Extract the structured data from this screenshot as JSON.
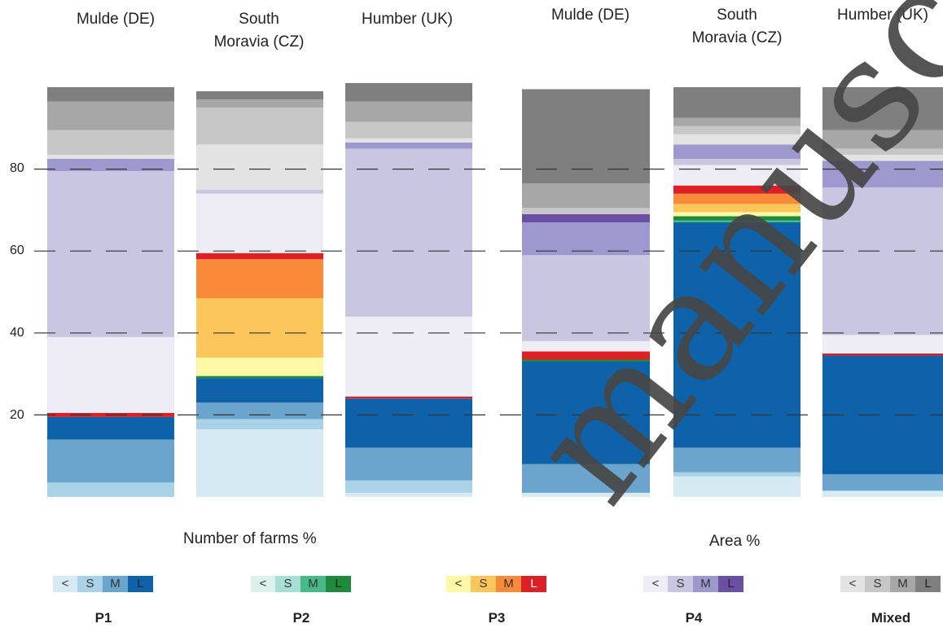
{
  "chart_data": [
    {
      "type": "stacked-bar",
      "title": "Number of farms %",
      "ylim": [
        0,
        100
      ],
      "yticks": [
        20,
        40,
        60,
        80
      ],
      "grid": "dashed at ticks",
      "categories": [
        "Mulde (DE)",
        "South Moravia (CZ)",
        "Humber (UK)"
      ],
      "bars": [
        [
          {
            "group": "P1",
            "size": "S",
            "value": 3.5
          },
          {
            "group": "P1",
            "size": "M",
            "value": 10.5
          },
          {
            "group": "P1",
            "size": "L",
            "value": 5.5
          },
          {
            "group": "P3",
            "size": "L",
            "value": 1
          },
          {
            "group": "P4",
            "size": "<",
            "value": 18.5
          },
          {
            "group": "P4",
            "size": "S",
            "value": 40.5
          },
          {
            "group": "P4",
            "size": "M",
            "value": 3
          },
          {
            "group": "Mixed",
            "size": "<",
            "value": 1
          },
          {
            "group": "Mixed",
            "size": "S",
            "value": 6
          },
          {
            "group": "Mixed",
            "size": "M",
            "value": 7
          },
          {
            "group": "Mixed",
            "size": "L",
            "value": 3.5
          }
        ],
        [
          {
            "group": "P1",
            "size": "<",
            "value": 16.5
          },
          {
            "group": "P1",
            "size": "S",
            "value": 2.5
          },
          {
            "group": "P1",
            "size": "M",
            "value": 4
          },
          {
            "group": "P1",
            "size": "L",
            "value": 6
          },
          {
            "group": "P2",
            "size": "L",
            "value": 0.5
          },
          {
            "group": "P3",
            "size": "<",
            "value": 4.5
          },
          {
            "group": "P3",
            "size": "S",
            "value": 14.5
          },
          {
            "group": "P3",
            "size": "M",
            "value": 9.5
          },
          {
            "group": "P3",
            "size": "L",
            "value": 1.5
          },
          {
            "group": "P4",
            "size": "<",
            "value": 14.5
          },
          {
            "group": "P4",
            "size": "S",
            "value": 1
          },
          {
            "group": "Mixed",
            "size": "<",
            "value": 11
          },
          {
            "group": "Mixed",
            "size": "S",
            "value": 9
          },
          {
            "group": "Mixed",
            "size": "M",
            "value": 2
          },
          {
            "group": "Mixed",
            "size": "L",
            "value": 2
          }
        ],
        [
          {
            "group": "P1",
            "size": "<",
            "value": 1
          },
          {
            "group": "P1",
            "size": "S",
            "value": 3
          },
          {
            "group": "P1",
            "size": "M",
            "value": 8
          },
          {
            "group": "P1",
            "size": "L",
            "value": 12
          },
          {
            "group": "P3",
            "size": "L",
            "value": 0.5
          },
          {
            "group": "P4",
            "size": "<",
            "value": 19.5
          },
          {
            "group": "P4",
            "size": "S",
            "value": 41
          },
          {
            "group": "P4",
            "size": "M",
            "value": 1.5
          },
          {
            "group": "Mixed",
            "size": "<",
            "value": 1
          },
          {
            "group": "Mixed",
            "size": "S",
            "value": 4
          },
          {
            "group": "Mixed",
            "size": "M",
            "value": 5
          },
          {
            "group": "Mixed",
            "size": "L",
            "value": 4.5
          }
        ]
      ]
    },
    {
      "type": "stacked-bar",
      "title": "Area %",
      "ylim": [
        0,
        100
      ],
      "yticks": [
        20,
        40,
        60,
        80
      ],
      "grid": "dashed at ticks",
      "categories": [
        "Mulde (DE)",
        "South Moravia (CZ)",
        "Humber (UK)"
      ],
      "bars": [
        [
          {
            "group": "P1",
            "size": "<",
            "value": 1
          },
          {
            "group": "P1",
            "size": "M",
            "value": 7
          },
          {
            "group": "P1",
            "size": "L",
            "value": 25
          },
          {
            "group": "P2",
            "size": "L",
            "value": 0.5
          },
          {
            "group": "P3",
            "size": "L",
            "value": 2
          },
          {
            "group": "P4",
            "size": "<",
            "value": 2.5
          },
          {
            "group": "P4",
            "size": "S",
            "value": 21
          },
          {
            "group": "P4",
            "size": "M",
            "value": 8
          },
          {
            "group": "P4",
            "size": "L",
            "value": 2
          },
          {
            "group": "Mixed",
            "size": "S",
            "value": 1.5
          },
          {
            "group": "Mixed",
            "size": "M",
            "value": 6
          },
          {
            "group": "Mixed",
            "size": "L",
            "value": 23
          }
        ],
        [
          {
            "group": "P1",
            "size": "<",
            "value": 5
          },
          {
            "group": "P1",
            "size": "S",
            "value": 1
          },
          {
            "group": "P1",
            "size": "M",
            "value": 6
          },
          {
            "group": "P1",
            "size": "L",
            "value": 55
          },
          {
            "group": "P2",
            "size": "M",
            "value": 0.5
          },
          {
            "group": "P2",
            "size": "L",
            "value": 1
          },
          {
            "group": "P3",
            "size": "<",
            "value": 1
          },
          {
            "group": "P3",
            "size": "S",
            "value": 2
          },
          {
            "group": "P3",
            "size": "M",
            "value": 2.5
          },
          {
            "group": "P3",
            "size": "L",
            "value": 2
          },
          {
            "group": "P4",
            "size": "<",
            "value": 5
          },
          {
            "group": "P4",
            "size": "S",
            "value": 1.5
          },
          {
            "group": "P4",
            "size": "M",
            "value": 3.5
          },
          {
            "group": "Mixed",
            "size": "<",
            "value": 2.5
          },
          {
            "group": "Mixed",
            "size": "S",
            "value": 2
          },
          {
            "group": "Mixed",
            "size": "M",
            "value": 2
          },
          {
            "group": "Mixed",
            "size": "L",
            "value": 7.5
          }
        ],
        [
          {
            "group": "P1",
            "size": "<",
            "value": 1.5
          },
          {
            "group": "P1",
            "size": "M",
            "value": 4
          },
          {
            "group": "P1",
            "size": "L",
            "value": 29
          },
          {
            "group": "P3",
            "size": "L",
            "value": 0.5
          },
          {
            "group": "P4",
            "size": "<",
            "value": 4.5
          },
          {
            "group": "P4",
            "size": "S",
            "value": 36
          },
          {
            "group": "P4",
            "size": "M",
            "value": 6.5
          },
          {
            "group": "Mixed",
            "size": "<",
            "value": 1.5
          },
          {
            "group": "Mixed",
            "size": "S",
            "value": 1.5
          },
          {
            "group": "Mixed",
            "size": "M",
            "value": 4.5
          },
          {
            "group": "Mixed",
            "size": "L",
            "value": 10.5
          }
        ]
      ]
    }
  ],
  "legend": [
    {
      "name": "P1",
      "cells": [
        "<",
        "S",
        "M",
        "L"
      ],
      "colors": [
        "#d6eaf4",
        "#a9d2e7",
        "#6ba4cd",
        "#0d62aa"
      ]
    },
    {
      "name": "P2",
      "cells": [
        "<",
        "S",
        "M",
        "L"
      ],
      "colors": [
        "#dcf1ec",
        "#a8dfd5",
        "#48b989",
        "#1e8a3a"
      ]
    },
    {
      "name": "P3",
      "cells": [
        "<",
        "S",
        "M",
        "L"
      ],
      "colors": [
        "#fdf8a6",
        "#fdc65a",
        "#f88a3a",
        "#dd1f26"
      ]
    },
    {
      "name": "P4",
      "cells": [
        "<",
        "S",
        "M",
        "L"
      ],
      "colors": [
        "#eeedf6",
        "#c8c6e0",
        "#9d98cd",
        "#6a4fa2"
      ]
    },
    {
      "name": "Mixed",
      "cells": [
        "<",
        "S",
        "M",
        "L"
      ],
      "colors": [
        "#e3e3e3",
        "#c7c7c7",
        "#a7a7a7",
        "#7f7f7f"
      ]
    }
  ],
  "watermark": "manuscript"
}
